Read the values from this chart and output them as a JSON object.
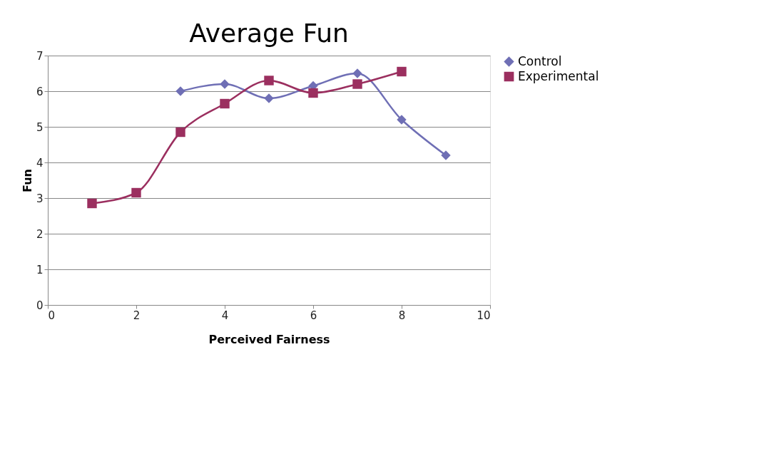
{
  "chart_data": {
    "type": "line",
    "title": "Average Fun",
    "xlabel": "Perceived Fairness",
    "ylabel": "Fun",
    "xlim": [
      0,
      10
    ],
    "xticks": [
      0,
      2,
      4,
      6,
      8,
      10
    ],
    "ylim": [
      0,
      7
    ],
    "yticks": [
      0,
      1,
      2,
      3,
      4,
      5,
      6,
      7
    ],
    "grid": "y",
    "legend": "right",
    "line_style": "solid",
    "series": [
      {
        "name": "Control",
        "color": "#6f6fb5",
        "marker": "diamond",
        "x": [
          3,
          4,
          5,
          6,
          7,
          8,
          9
        ],
        "values": [
          6.0,
          6.2,
          5.8,
          6.15,
          6.5,
          5.2,
          4.2
        ]
      },
      {
        "name": "Experimental",
        "color": "#9b2f5f",
        "marker": "square",
        "x": [
          1,
          2,
          3,
          4,
          5,
          6,
          7,
          8
        ],
        "values": [
          2.85,
          3.15,
          4.85,
          5.65,
          6.3,
          5.95,
          6.2,
          6.55
        ]
      }
    ]
  }
}
